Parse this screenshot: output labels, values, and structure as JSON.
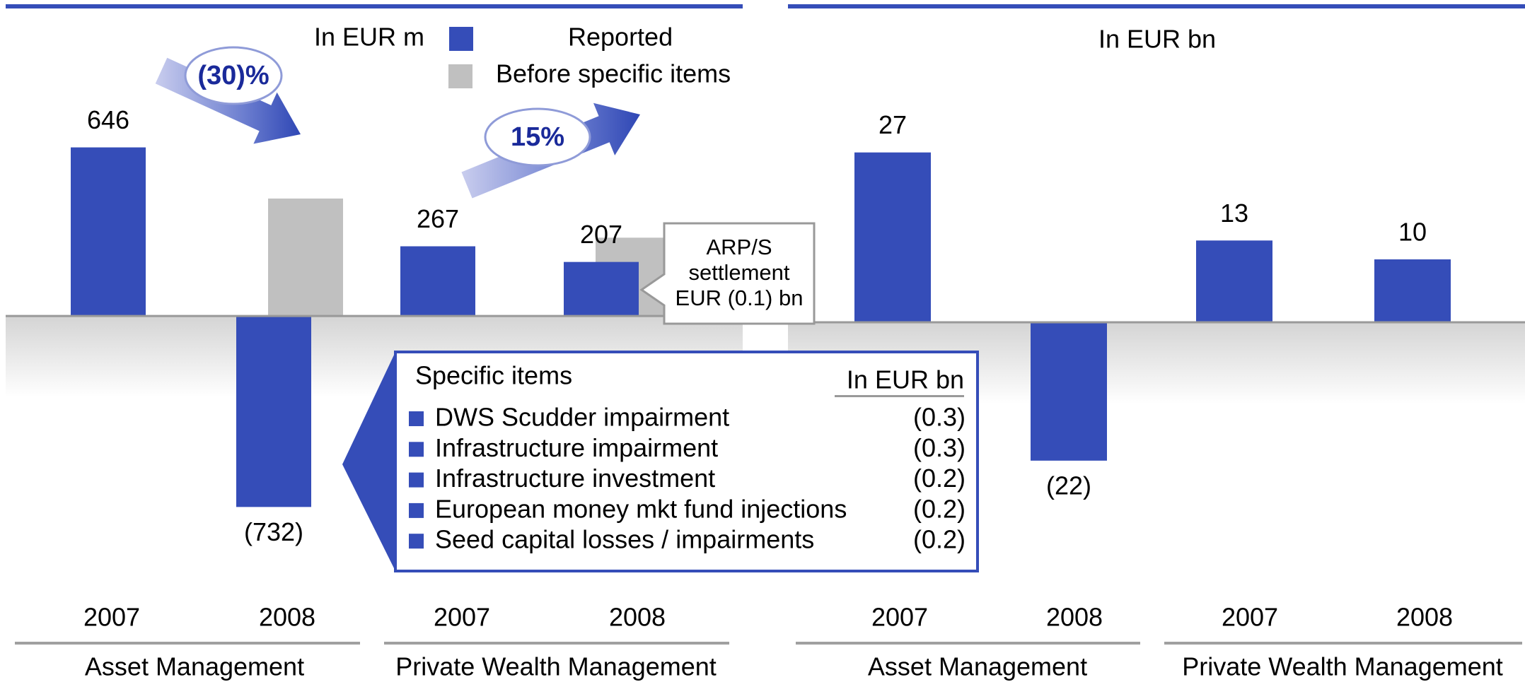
{
  "chart_data": [
    {
      "type": "bar",
      "unit_label": "In EUR m",
      "categories": [
        "2007",
        "2008",
        "2007",
        "2008"
      ],
      "groups": [
        "Asset Management",
        "Private Wealth Management"
      ],
      "series": [
        {
          "name": "Reported",
          "color": "#354db8",
          "values": [
            646,
            -732,
            267,
            207
          ],
          "value_labels": [
            "646",
            "(732)",
            "267",
            "207"
          ]
        },
        {
          "name": "Before specific items",
          "color": "#c0c0c0",
          "values": [
            null,
            450,
            null,
            300
          ]
        }
      ],
      "ylim": [
        -1400,
        1200
      ],
      "annotations": [
        "(30)%",
        "15%"
      ],
      "callout": [
        "ARP/S",
        "settlement",
        "EUR (0.1) bn"
      ]
    },
    {
      "type": "bar",
      "unit_label": "In EUR bn",
      "categories": [
        "2007",
        "2008",
        "2007",
        "2008"
      ],
      "groups": [
        "Asset Management",
        "Private Wealth Management"
      ],
      "series": [
        {
          "color": "#354db8",
          "values": [
            27,
            -22,
            13,
            10
          ],
          "value_labels": [
            "27",
            "(22)",
            "13",
            "10"
          ]
        }
      ],
      "ylim": [
        -50,
        50
      ]
    }
  ],
  "specific_items": {
    "title": "Specific items",
    "unit": "In EUR bn",
    "rows": [
      {
        "label": "DWS Scudder impairment",
        "value": "(0.3)"
      },
      {
        "label": "Infrastructure impairment",
        "value": "(0.3)"
      },
      {
        "label": "Infrastructure investment",
        "value": "(0.2)"
      },
      {
        "label": "European money mkt fund injections",
        "value": "(0.2)"
      },
      {
        "label": "Seed capital losses / impairments",
        "value": "(0.2)"
      }
    ]
  }
}
